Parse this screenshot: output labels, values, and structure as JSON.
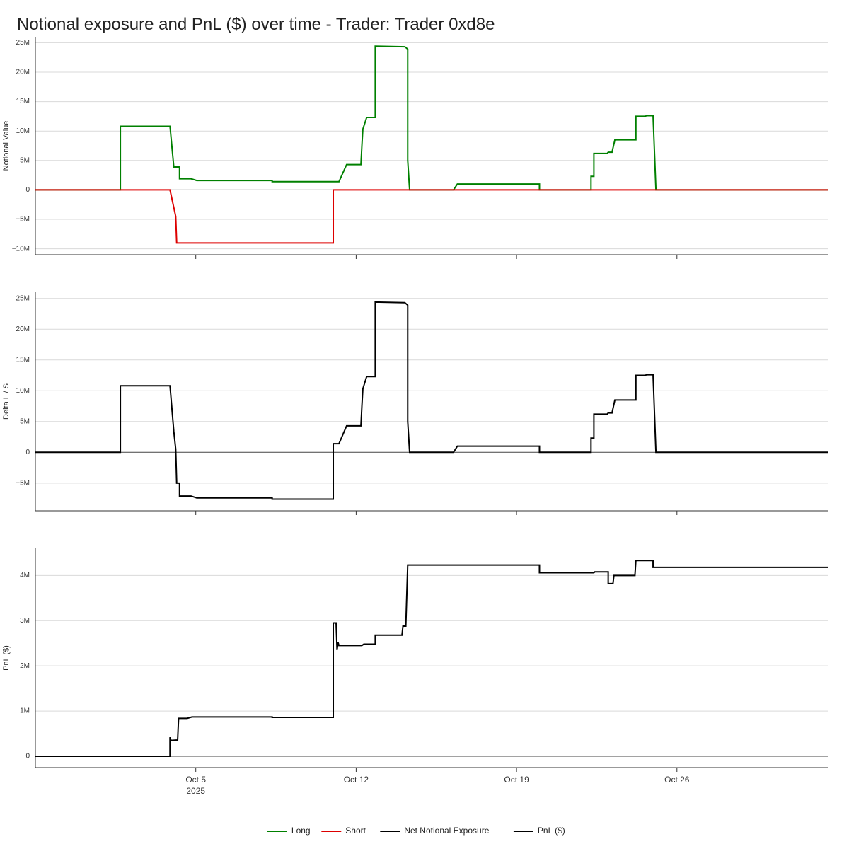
{
  "title": "Notional exposure and PnL ($) over time - Trader: Trader 0xd8e",
  "chart_data": [
    {
      "type": "line",
      "ylabel": "Notional Value",
      "ylim": [
        -11000000,
        26000000
      ],
      "yticks": [
        25000000,
        20000000,
        15000000,
        10000000,
        5000000,
        0,
        -5000000,
        -10000000
      ],
      "ytick_labels": [
        "25M",
        "20M",
        "15M",
        "10M",
        "5M",
        "0",
        "−5M",
        "−10M"
      ],
      "series": [
        {
          "name": "Long",
          "color": "#008000",
          "points": [
            [
              "2025-09-28T00:00",
              0
            ],
            [
              "2025-10-01T17:00",
              0
            ],
            [
              "2025-10-01T17:00",
              10800000
            ],
            [
              "2025-10-03T21:00",
              10800000
            ],
            [
              "2025-10-04T01:00",
              3900000
            ],
            [
              "2025-10-04T07:00",
              3900000
            ],
            [
              "2025-10-04T07:00",
              1900000
            ],
            [
              "2025-10-04T19:00",
              1900000
            ],
            [
              "2025-10-05T01:00",
              1600000
            ],
            [
              "2025-10-08T08:00",
              1600000
            ],
            [
              "2025-10-08T08:00",
              1400000
            ],
            [
              "2025-10-11T06:00",
              1400000
            ],
            [
              "2025-10-11T14:00",
              4300000
            ],
            [
              "2025-10-12T05:00",
              4300000
            ],
            [
              "2025-10-12T06:00",
              7500000
            ],
            [
              "2025-10-12T07:00",
              10300000
            ],
            [
              "2025-10-12T11:00",
              12300000
            ],
            [
              "2025-10-12T20:00",
              12300000
            ],
            [
              "2025-10-12T20:00",
              24400000
            ],
            [
              "2025-10-14T03:00",
              24300000
            ],
            [
              "2025-10-14T06:00",
              23900000
            ],
            [
              "2025-10-14T06:00",
              5000000
            ],
            [
              "2025-10-14T08:00",
              0
            ],
            [
              "2025-10-16T06:00",
              0
            ],
            [
              "2025-10-16T10:00",
              1000000
            ],
            [
              "2025-10-20T00:00",
              1000000
            ],
            [
              "2025-10-20T00:00",
              0
            ],
            [
              "2025-10-22T06:00",
              0
            ],
            [
              "2025-10-22T06:00",
              2300000
            ],
            [
              "2025-10-22T09:00",
              2300000
            ],
            [
              "2025-10-22T09:00",
              6200000
            ],
            [
              "2025-10-22T23:00",
              6200000
            ],
            [
              "2025-10-23T00:00",
              6400000
            ],
            [
              "2025-10-23T04:00",
              6400000
            ],
            [
              "2025-10-23T07:00",
              8500000
            ],
            [
              "2025-10-24T05:00",
              8500000
            ],
            [
              "2025-10-24T05:00",
              12500000
            ],
            [
              "2025-10-24T15:00",
              12500000
            ],
            [
              "2025-10-24T16:00",
              12600000
            ],
            [
              "2025-10-24T23:00",
              12600000
            ],
            [
              "2025-10-25T02:00",
              0
            ],
            [
              "2025-11-01T14:00",
              0
            ]
          ]
        },
        {
          "name": "Short",
          "color": "#dd0000",
          "points": [
            [
              "2025-09-28T00:00",
              0
            ],
            [
              "2025-10-03T21:00",
              0
            ],
            [
              "2025-10-04T03:00",
              -4500000
            ],
            [
              "2025-10-04T04:00",
              -9000000
            ],
            [
              "2025-10-11T00:00",
              -9000000
            ],
            [
              "2025-10-11T00:00",
              0
            ],
            [
              "2025-11-01T14:00",
              0
            ]
          ]
        }
      ]
    },
    {
      "type": "line",
      "ylabel": "Delta L / S",
      "ylim": [
        -9500000,
        26000000
      ],
      "yticks": [
        25000000,
        20000000,
        15000000,
        10000000,
        5000000,
        0,
        -5000000
      ],
      "ytick_labels": [
        "25M",
        "20M",
        "15M",
        "10M",
        "5M",
        "0",
        "−5M"
      ],
      "series": [
        {
          "name": "Net Notional Exposure",
          "color": "#000000",
          "points": [
            [
              "2025-09-28T00:00",
              0
            ],
            [
              "2025-10-01T17:00",
              0
            ],
            [
              "2025-10-01T17:00",
              10800000
            ],
            [
              "2025-10-03T21:00",
              10800000
            ],
            [
              "2025-10-04T01:00",
              3400000
            ],
            [
              "2025-10-04T03:00",
              500000
            ],
            [
              "2025-10-04T04:00",
              -5000000
            ],
            [
              "2025-10-04T07:00",
              -5000000
            ],
            [
              "2025-10-04T07:00",
              -7100000
            ],
            [
              "2025-10-04T19:00",
              -7100000
            ],
            [
              "2025-10-05T01:00",
              -7400000
            ],
            [
              "2025-10-08T08:00",
              -7400000
            ],
            [
              "2025-10-08T08:00",
              -7600000
            ],
            [
              "2025-10-11T00:00",
              -7600000
            ],
            [
              "2025-10-11T00:00",
              1400000
            ],
            [
              "2025-10-11T06:00",
              1400000
            ],
            [
              "2025-10-11T14:00",
              4300000
            ],
            [
              "2025-10-12T05:00",
              4300000
            ],
            [
              "2025-10-12T06:00",
              7500000
            ],
            [
              "2025-10-12T07:00",
              10300000
            ],
            [
              "2025-10-12T11:00",
              12300000
            ],
            [
              "2025-10-12T20:00",
              12300000
            ],
            [
              "2025-10-12T20:00",
              24400000
            ],
            [
              "2025-10-14T03:00",
              24300000
            ],
            [
              "2025-10-14T06:00",
              23900000
            ],
            [
              "2025-10-14T06:00",
              5000000
            ],
            [
              "2025-10-14T08:00",
              0
            ],
            [
              "2025-10-16T06:00",
              0
            ],
            [
              "2025-10-16T10:00",
              1000000
            ],
            [
              "2025-10-20T00:00",
              1000000
            ],
            [
              "2025-10-20T00:00",
              0
            ],
            [
              "2025-10-22T06:00",
              0
            ],
            [
              "2025-10-22T06:00",
              2300000
            ],
            [
              "2025-10-22T09:00",
              2300000
            ],
            [
              "2025-10-22T09:00",
              6200000
            ],
            [
              "2025-10-22T23:00",
              6200000
            ],
            [
              "2025-10-23T00:00",
              6400000
            ],
            [
              "2025-10-23T04:00",
              6400000
            ],
            [
              "2025-10-23T07:00",
              8500000
            ],
            [
              "2025-10-24T05:00",
              8500000
            ],
            [
              "2025-10-24T05:00",
              12500000
            ],
            [
              "2025-10-24T15:00",
              12500000
            ],
            [
              "2025-10-24T16:00",
              12600000
            ],
            [
              "2025-10-24T23:00",
              12600000
            ],
            [
              "2025-10-25T02:00",
              0
            ],
            [
              "2025-11-01T14:00",
              0
            ]
          ]
        }
      ]
    },
    {
      "type": "line",
      "ylabel": "PnL ($)",
      "ylim": [
        -250000,
        4600000
      ],
      "yticks": [
        4000000,
        3000000,
        2000000,
        1000000,
        0
      ],
      "ytick_labels": [
        "4M",
        "3M",
        "2M",
        "1M",
        "0"
      ],
      "series": [
        {
          "name": "PnL ($)",
          "color": "#000000",
          "points": [
            [
              "2025-09-28T00:00",
              0
            ],
            [
              "2025-10-03T21:00",
              0
            ],
            [
              "2025-10-03T21:00",
              420000
            ],
            [
              "2025-10-03T22:00",
              350000
            ],
            [
              "2025-10-04T05:00",
              360000
            ],
            [
              "2025-10-04T06:00",
              840000
            ],
            [
              "2025-10-04T15:00",
              840000
            ],
            [
              "2025-10-04T20:00",
              870000
            ],
            [
              "2025-10-08T08:00",
              870000
            ],
            [
              "2025-10-08T08:00",
              860000
            ],
            [
              "2025-10-11T00:00",
              860000
            ],
            [
              "2025-10-11T00:00",
              2950000
            ],
            [
              "2025-10-11T03:00",
              2950000
            ],
            [
              "2025-10-11T04:00",
              2350000
            ],
            [
              "2025-10-11T05:00",
              2520000
            ],
            [
              "2025-10-11T06:00",
              2450000
            ],
            [
              "2025-10-12T06:00",
              2450000
            ],
            [
              "2025-10-12T08:00",
              2480000
            ],
            [
              "2025-10-12T20:00",
              2480000
            ],
            [
              "2025-10-12T20:00",
              2680000
            ],
            [
              "2025-10-14T00:00",
              2680000
            ],
            [
              "2025-10-14T01:00",
              2880000
            ],
            [
              "2025-10-14T04:00",
              2880000
            ],
            [
              "2025-10-14T06:00",
              4230000
            ],
            [
              "2025-10-20T00:00",
              4230000
            ],
            [
              "2025-10-20T00:00",
              4060000
            ],
            [
              "2025-10-22T09:00",
              4060000
            ],
            [
              "2025-10-22T10:00",
              4080000
            ],
            [
              "2025-10-23T00:00",
              4080000
            ],
            [
              "2025-10-23T00:00",
              3820000
            ],
            [
              "2025-10-23T05:00",
              3820000
            ],
            [
              "2025-10-23T06:00",
              4000000
            ],
            [
              "2025-10-24T04:00",
              4000000
            ],
            [
              "2025-10-24T05:00",
              4330000
            ],
            [
              "2025-10-24T23:00",
              4330000
            ],
            [
              "2025-10-24T23:00",
              4180000
            ],
            [
              "2025-11-01T14:00",
              4180000
            ]
          ]
        }
      ]
    }
  ],
  "x_axis": {
    "range": [
      "2025-09-28T00:00",
      "2025-11-01T14:00"
    ],
    "ticks": [
      {
        "date": "2025-10-05",
        "label": "Oct 5",
        "sublabel": "2025"
      },
      {
        "date": "2025-10-12",
        "label": "Oct 12",
        "sublabel": ""
      },
      {
        "date": "2025-10-19",
        "label": "Oct 19",
        "sublabel": ""
      },
      {
        "date": "2025-10-26",
        "label": "Oct 26",
        "sublabel": ""
      }
    ]
  },
  "legend": {
    "position": "bottom",
    "items": [
      {
        "label": "Long",
        "color": "#008000"
      },
      {
        "label": "Short",
        "color": "#dd0000"
      },
      {
        "label": "Net Notional Exposure",
        "color": "#000000"
      },
      {
        "label": "PnL ($)",
        "color": "#000000"
      }
    ]
  }
}
